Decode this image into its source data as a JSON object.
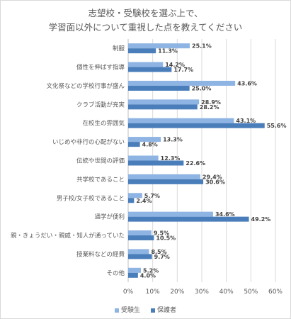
{
  "chart_data": {
    "type": "bar",
    "orientation": "horizontal",
    "title_lines": [
      "志望校・受験校を選ぶ上で、",
      "学習面以外について重視した点を教えてください"
    ],
    "categories": [
      "制服",
      "個性を伸ばす指導",
      "文化祭などの学校行事が盛ん",
      "クラブ活動が充実",
      "在校生の雰囲気",
      "いじめや非行の心配がない",
      "伝統や世間の評価",
      "共学校であること",
      "男子校/女子校であること",
      "通学が便利",
      "親・きょうだい・親戚・知人が通っていた",
      "授業料などの経費",
      "その他"
    ],
    "series": [
      {
        "name": "受験生",
        "color": "#8eb4e3",
        "values": [
          25.1,
          14.2,
          43.6,
          28.9,
          43.1,
          13.3,
          12.3,
          29.4,
          5.7,
          34.6,
          9.5,
          8.5,
          5.2
        ]
      },
      {
        "name": "保護者",
        "color": "#4a7ebb",
        "values": [
          11.3,
          17.7,
          25.0,
          28.2,
          55.6,
          4.8,
          22.6,
          30.6,
          2.4,
          49.2,
          10.5,
          9.7,
          4.0
        ]
      }
    ],
    "x_ticks": [
      "0%",
      "10%",
      "20%",
      "30%",
      "40%",
      "50%",
      "60%"
    ],
    "xlim": [
      0,
      60
    ],
    "value_suffix": "%",
    "grid": true,
    "legend_position": "bottom"
  }
}
